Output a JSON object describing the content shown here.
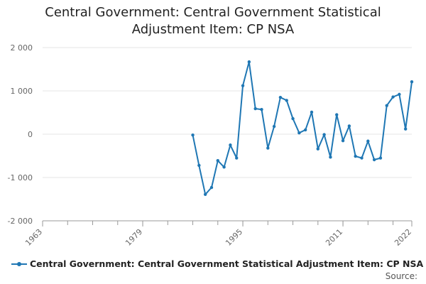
{
  "title_line1": "Central Government: Central Government Statistical",
  "title_line2": "Adjustment Item: CP NSA",
  "source_label": "Source:",
  "colors": {
    "series": "#1f77b4",
    "grid": "#e6e6e6",
    "axis": "#999999",
    "tick_text": "#666666"
  },
  "chart_data": {
    "type": "line",
    "title": "Central Government: Central Government Statistical Adjustment Item: CP NSA",
    "xlabel": "",
    "ylabel": "",
    "xlim": [
      1963,
      2022
    ],
    "ylim": [
      -2000,
      2000
    ],
    "x_ticks": [
      1963,
      1979,
      1995,
      2011,
      2022
    ],
    "y_ticks": [
      -2000,
      -1000,
      0,
      1000,
      2000
    ],
    "y_tick_labels": [
      "-2 000",
      "-1 000",
      "0",
      "1 000",
      "2 000"
    ],
    "legend": "bottom",
    "series": [
      {
        "name": "Central Government: Central Government Statistical Adjustment Item: CP NSA",
        "x": [
          1987,
          1988,
          1989,
          1990,
          1991,
          1992,
          1993,
          1994,
          1995,
          1996,
          1997,
          1998,
          1999,
          2000,
          2001,
          2002,
          2003,
          2004,
          2005,
          2006,
          2007,
          2008,
          2009,
          2010,
          2011,
          2012,
          2013,
          2014,
          2015,
          2016,
          2017,
          2018,
          2019,
          2020,
          2021,
          2022
        ],
        "values": [
          -20,
          -720,
          -1390,
          -1230,
          -610,
          -760,
          -250,
          -550,
          1120,
          1670,
          590,
          570,
          -320,
          180,
          850,
          780,
          360,
          30,
          100,
          510,
          -340,
          -10,
          -530,
          450,
          -150,
          190,
          -510,
          -550,
          -160,
          -590,
          -550,
          660,
          860,
          920,
          120,
          1210
        ]
      }
    ]
  }
}
